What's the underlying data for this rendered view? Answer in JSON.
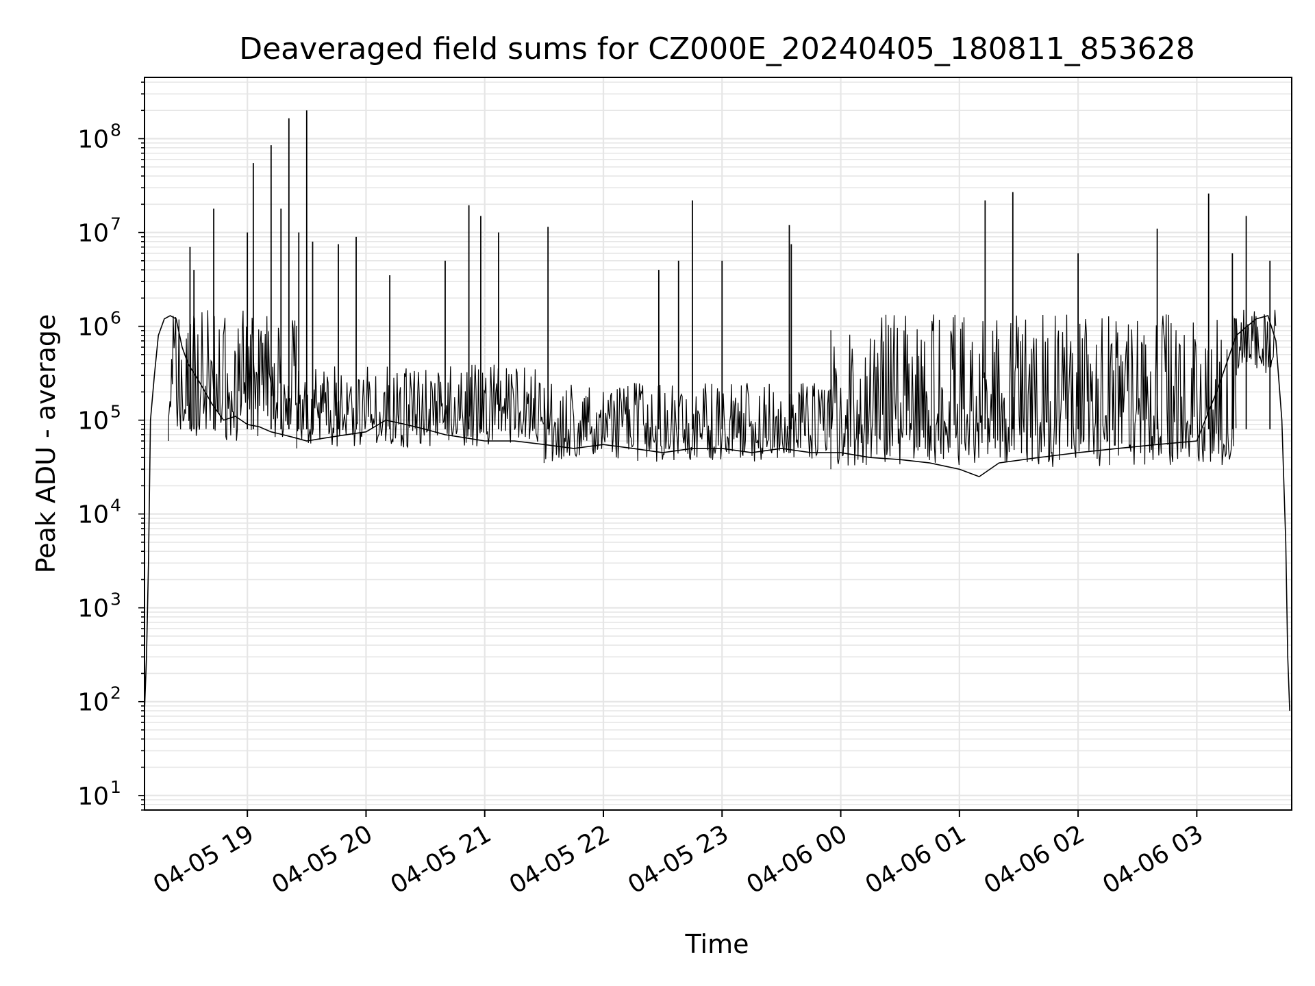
{
  "chart_data": {
    "type": "line",
    "title": "Deaveraged field sums for CZ000E_20240405_180811_853628",
    "xlabel": "Time",
    "ylabel": "Peak ADU - average",
    "y_scale": "log",
    "ylim": [
      7,
      450000000
    ],
    "xlim": [
      "2024-04-05 18:08",
      "2024-04-06 03:48"
    ],
    "x_ticks": [
      {
        "label": "04-05 19",
        "value": "2024-04-05 19:00"
      },
      {
        "label": "04-05 20",
        "value": "2024-04-05 20:00"
      },
      {
        "label": "04-05 21",
        "value": "2024-04-05 21:00"
      },
      {
        "label": "04-05 22",
        "value": "2024-04-05 22:00"
      },
      {
        "label": "04-05 23",
        "value": "2024-04-05 23:00"
      },
      {
        "label": "04-06 00",
        "value": "2024-04-06 00:00"
      },
      {
        "label": "04-06 01",
        "value": "2024-04-06 01:00"
      },
      {
        "label": "04-06 02",
        "value": "2024-04-06 02:00"
      },
      {
        "label": "04-06 03",
        "value": "2024-04-06 03:00"
      }
    ],
    "y_ticks": [
      {
        "base": "10",
        "exp": "1",
        "value": 10
      },
      {
        "base": "10",
        "exp": "2",
        "value": 100
      },
      {
        "base": "10",
        "exp": "3",
        "value": 1000
      },
      {
        "base": "10",
        "exp": "4",
        "value": 10000
      },
      {
        "base": "10",
        "exp": "5",
        "value": 100000
      },
      {
        "base": "10",
        "exp": "6",
        "value": 1000000
      },
      {
        "base": "10",
        "exp": "7",
        "value": 10000000
      },
      {
        "base": "10",
        "exp": "8",
        "value": 100000000
      }
    ],
    "grid": true,
    "line_color": "#000000",
    "grid_color": "#e6e6e6",
    "series": [
      {
        "points": [
          [
            "2024-04-05 18:08",
            80
          ],
          [
            "2024-04-05 18:09",
            300
          ],
          [
            "2024-04-05 18:10",
            3000
          ],
          [
            "2024-04-05 18:11",
            100000
          ],
          [
            "2024-04-05 18:13",
            300000
          ],
          [
            "2024-04-05 18:15",
            800000
          ],
          [
            "2024-04-05 18:18",
            1200000
          ],
          [
            "2024-04-05 18:21",
            1300000
          ],
          [
            "2024-04-05 18:24",
            1200000
          ],
          [
            "2024-04-05 18:27",
            600000
          ],
          [
            "2024-04-05 18:30",
            400000
          ],
          [
            "2024-04-05 18:36",
            250000
          ],
          [
            "2024-04-05 18:42",
            150000
          ],
          [
            "2024-04-05 18:48",
            100000
          ],
          [
            "2024-04-05 18:54",
            110000
          ],
          [
            "2024-04-05 19:00",
            90000
          ],
          [
            "2024-04-05 19:06",
            85000
          ],
          [
            "2024-04-05 19:12",
            75000
          ],
          [
            "2024-04-05 19:18",
            70000
          ],
          [
            "2024-04-05 19:24",
            65000
          ],
          [
            "2024-04-05 19:30",
            60000
          ],
          [
            "2024-04-05 19:40",
            65000
          ],
          [
            "2024-04-05 19:50",
            70000
          ],
          [
            "2024-04-05 20:00",
            75000
          ],
          [
            "2024-04-05 20:10",
            100000
          ],
          [
            "2024-04-05 20:20",
            90000
          ],
          [
            "2024-04-05 20:30",
            80000
          ],
          [
            "2024-04-05 20:40",
            70000
          ],
          [
            "2024-04-05 20:50",
            65000
          ],
          [
            "2024-04-05 21:00",
            60000
          ],
          [
            "2024-04-05 21:15",
            60000
          ],
          [
            "2024-04-05 21:30",
            55000
          ],
          [
            "2024-04-05 21:45",
            50000
          ],
          [
            "2024-04-05 22:00",
            55000
          ],
          [
            "2024-04-05 22:15",
            50000
          ],
          [
            "2024-04-05 22:30",
            45000
          ],
          [
            "2024-04-05 22:45",
            50000
          ],
          [
            "2024-04-05 23:00",
            50000
          ],
          [
            "2024-04-05 23:15",
            45000
          ],
          [
            "2024-04-05 23:30",
            50000
          ],
          [
            "2024-04-05 23:45",
            45000
          ],
          [
            "2024-04-06 00:00",
            45000
          ],
          [
            "2024-04-06 00:15",
            40000
          ],
          [
            "2024-04-06 00:30",
            38000
          ],
          [
            "2024-04-06 00:45",
            35000
          ],
          [
            "2024-04-06 01:00",
            30000
          ],
          [
            "2024-04-06 01:10",
            25000
          ],
          [
            "2024-04-06 01:20",
            35000
          ],
          [
            "2024-04-06 01:40",
            40000
          ],
          [
            "2024-04-06 02:00",
            45000
          ],
          [
            "2024-04-06 02:20",
            50000
          ],
          [
            "2024-04-06 02:40",
            55000
          ],
          [
            "2024-04-06 03:00",
            60000
          ],
          [
            "2024-04-06 03:10",
            200000
          ],
          [
            "2024-04-06 03:20",
            800000
          ],
          [
            "2024-04-06 03:30",
            1200000
          ],
          [
            "2024-04-06 03:36",
            1300000
          ],
          [
            "2024-04-06 03:40",
            700000
          ],
          [
            "2024-04-06 03:43",
            100000
          ],
          [
            "2024-04-06 03:45",
            5000
          ],
          [
            "2024-04-06 03:46",
            300
          ],
          [
            "2024-04-06 03:47",
            80
          ]
        ]
      }
    ],
    "dense_band": [
      {
        "from": "2024-04-05 18:20",
        "to": "2024-04-05 19:25",
        "low": 60000,
        "high": 1500000
      },
      {
        "from": "2024-04-05 19:25",
        "to": "2024-04-05 21:30",
        "low": 50000,
        "high": 400000
      },
      {
        "from": "2024-04-05 21:30",
        "to": "2024-04-05 23:55",
        "low": 35000,
        "high": 250000
      },
      {
        "from": "2024-04-05 23:55",
        "to": "2024-04-06 03:20",
        "low": 30000,
        "high": 1400000
      },
      {
        "from": "2024-04-06 03:20",
        "to": "2024-04-06 03:40",
        "low": 300000,
        "high": 1500000
      }
    ],
    "spikes": [
      [
        "2024-04-05 18:31",
        7000000
      ],
      [
        "2024-04-05 18:33",
        4000000
      ],
      [
        "2024-04-05 18:43",
        18000000
      ],
      [
        "2024-04-05 19:00",
        10000000
      ],
      [
        "2024-04-05 19:03",
        55000000
      ],
      [
        "2024-04-05 19:12",
        85000000
      ],
      [
        "2024-04-05 19:17",
        18000000
      ],
      [
        "2024-04-05 19:21",
        165000000
      ],
      [
        "2024-04-05 19:26",
        10000000
      ],
      [
        "2024-04-05 19:30",
        200000000
      ],
      [
        "2024-04-05 19:33",
        8000000
      ],
      [
        "2024-04-05 19:46",
        7500000
      ],
      [
        "2024-04-05 19:55",
        9000000
      ],
      [
        "2024-04-05 20:12",
        3500000
      ],
      [
        "2024-04-05 20:40",
        5000000
      ],
      [
        "2024-04-05 20:52",
        19500000
      ],
      [
        "2024-04-05 20:58",
        15000000
      ],
      [
        "2024-04-05 21:07",
        10000000
      ],
      [
        "2024-04-05 21:32",
        11500000
      ],
      [
        "2024-04-05 22:28",
        4000000
      ],
      [
        "2024-04-05 22:38",
        5000000
      ],
      [
        "2024-04-05 22:45",
        22000000
      ],
      [
        "2024-04-05 23:00",
        5000000
      ],
      [
        "2024-04-05 23:34",
        12000000
      ],
      [
        "2024-04-05 23:35",
        7500000
      ],
      [
        "2024-04-06 01:13",
        22000000
      ],
      [
        "2024-04-06 01:27",
        27000000
      ],
      [
        "2024-04-06 02:00",
        6000000
      ],
      [
        "2024-04-06 02:40",
        11000000
      ],
      [
        "2024-04-06 03:06",
        26000000
      ],
      [
        "2024-04-06 03:18",
        6000000
      ],
      [
        "2024-04-06 03:25",
        15000000
      ],
      [
        "2024-04-06 03:37",
        5000000
      ]
    ]
  }
}
